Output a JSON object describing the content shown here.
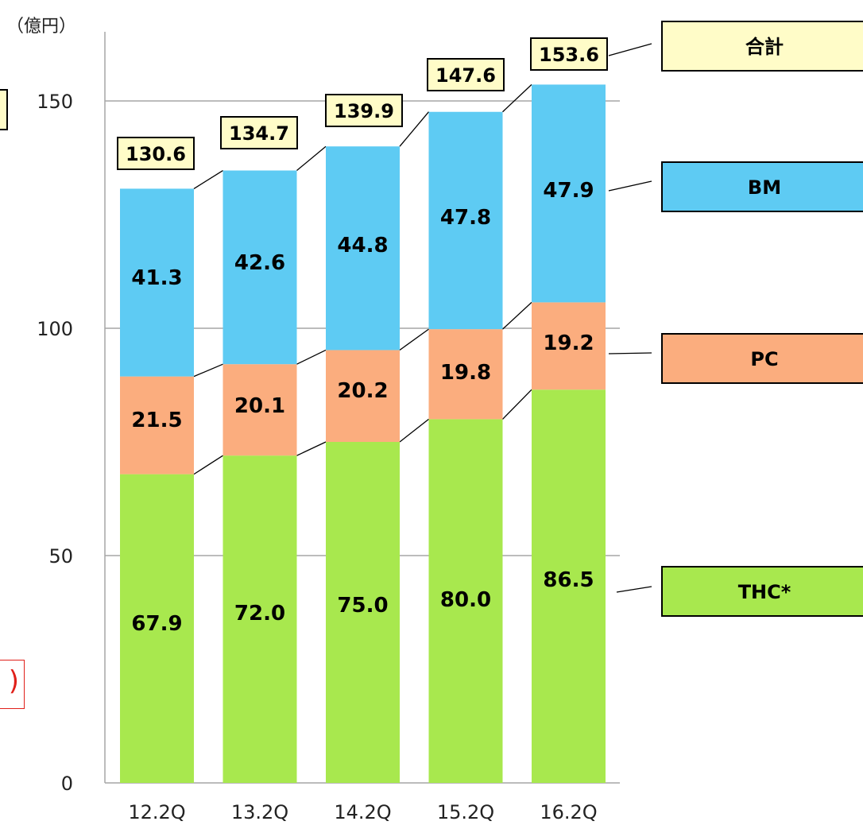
{
  "unit_label": "（億円）",
  "colors": {
    "THC": "#a8e84e",
    "PC": "#fbad7e",
    "BM": "#5ecbf3",
    "total_box": "#fffcc8",
    "grid": "#a6a6a6",
    "connector": "#000000"
  },
  "chart_data": {
    "type": "bar",
    "stacked": true,
    "categories": [
      "12.2Q",
      "13.2Q",
      "14.2Q",
      "15.2Q",
      "16.2Q"
    ],
    "ylim": [
      0,
      170
    ],
    "yticks": [
      0,
      50,
      100,
      150
    ],
    "grid": true,
    "series": [
      {
        "name": "THC*",
        "key": "THC",
        "values": [
          67.9,
          72.0,
          75.0,
          80.0,
          86.5
        ]
      },
      {
        "name": "PC",
        "key": "PC",
        "values": [
          21.5,
          20.1,
          20.2,
          19.8,
          19.2
        ]
      },
      {
        "name": "BM",
        "key": "BM",
        "values": [
          41.3,
          42.6,
          44.8,
          47.8,
          47.9
        ]
      }
    ],
    "totals": [
      130.6,
      134.7,
      139.9,
      147.6,
      153.6
    ],
    "total_label": "合計",
    "legend_placement": "right",
    "value_labels": {
      "THC": [
        "67.9",
        "72.0",
        "75.0",
        "80.0",
        "86.5"
      ],
      "PC": [
        "21.5",
        "20.1",
        "20.2",
        "19.8",
        "19.2"
      ],
      "BM": [
        "41.3",
        "42.6",
        "44.8",
        "47.8",
        "47.9"
      ],
      "total": [
        "130.6",
        "134.7",
        "139.9",
        "147.6",
        "153.6"
      ]
    }
  },
  "clipped_fragment_text": ")"
}
